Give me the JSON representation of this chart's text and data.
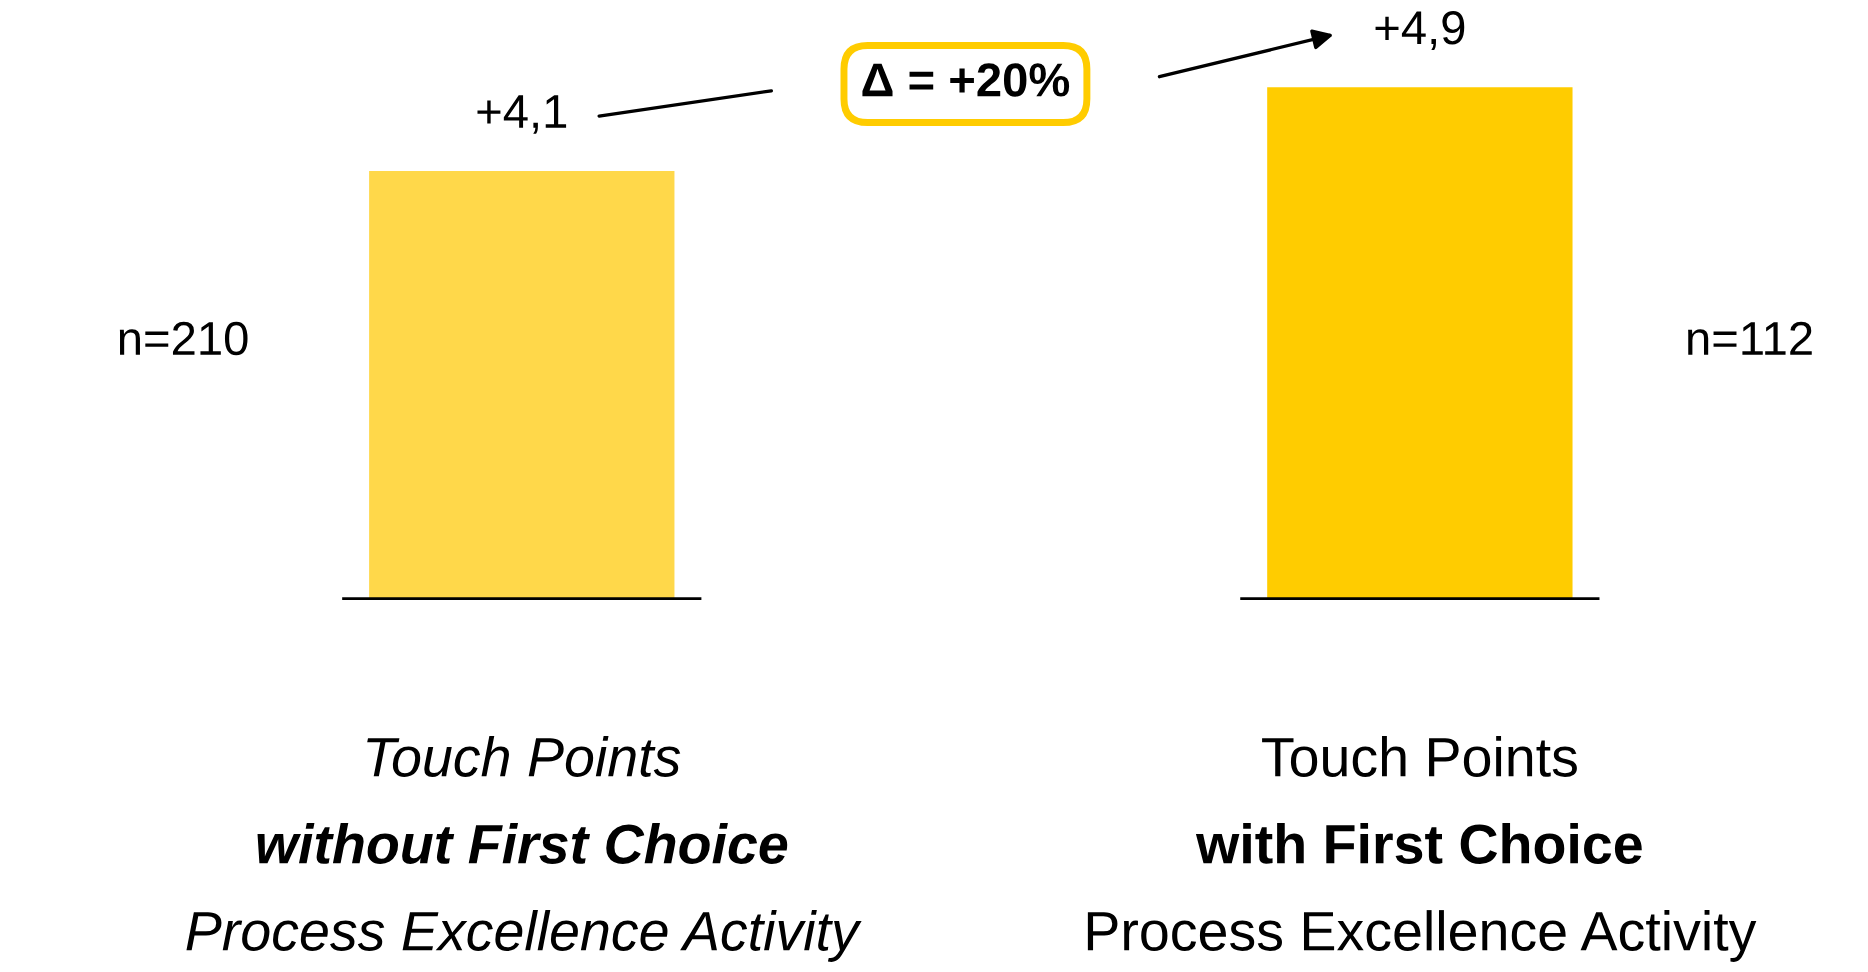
{
  "chart_data": {
    "type": "bar",
    "categories": [
      "Touch Points\nwithout First Choice\nProcess Excellence Activity",
      "Touch Points\nwith First Choice\nProcess Excellence Activity"
    ],
    "values": [
      4.1,
      4.9
    ],
    "colors": [
      "#ffd84a",
      "#ffcc00"
    ],
    "value_labels": [
      "+4,1",
      "+4,9"
    ],
    "annotations": [
      "n=210",
      "n=112",
      "Δ = +20%"
    ]
  }
}
